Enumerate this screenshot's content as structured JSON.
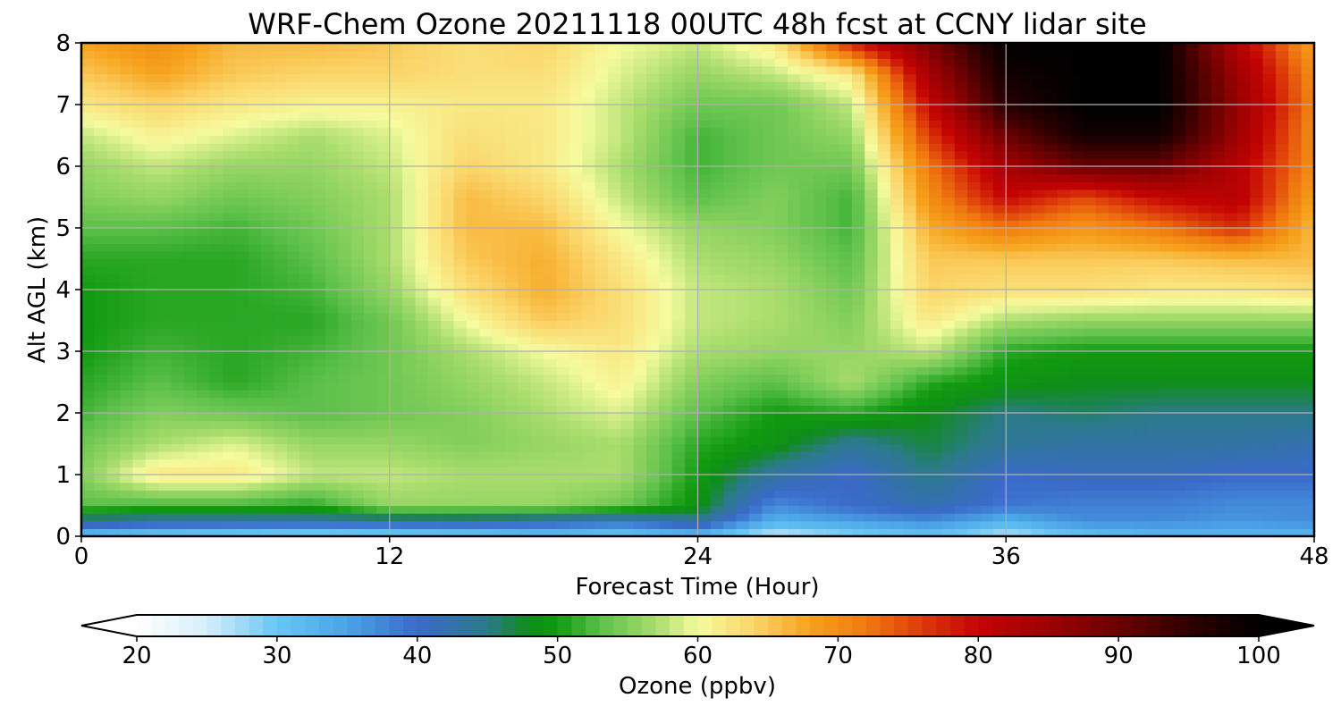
{
  "chart_data": {
    "type": "heatmap",
    "title": "WRF-Chem Ozone  20211118 00UTC 48h fcst at CCNY lidar site",
    "xlabel": "Forecast Time (Hour)",
    "ylabel": "Alt AGL (km)",
    "xlim": [
      0,
      48
    ],
    "ylim": [
      0,
      8
    ],
    "x_ticks": [
      "0",
      "12",
      "24",
      "36",
      "48"
    ],
    "y_ticks": [
      "0",
      "1",
      "2",
      "3",
      "4",
      "5",
      "6",
      "7",
      "8"
    ],
    "grid": true,
    "colorbar": {
      "label": "Ozone  (ppbv)",
      "range": [
        20,
        100
      ],
      "extend": "both",
      "ticks": [
        "20",
        "30",
        "40",
        "50",
        "60",
        "70",
        "80",
        "90",
        "100"
      ]
    },
    "x": [
      0,
      3,
      6,
      9,
      12,
      15,
      18,
      21,
      24,
      27,
      30,
      33,
      36,
      39,
      42,
      45,
      48
    ],
    "y": [
      0,
      0.25,
      0.5,
      1,
      1.5,
      2,
      2.5,
      3,
      3.5,
      4,
      4.5,
      5,
      5.5,
      6,
      6.5,
      7,
      7.5,
      8
    ],
    "z": [
      [
        30,
        28,
        27,
        26,
        27,
        28,
        30,
        29,
        31,
        25,
        28,
        30,
        26,
        30,
        32,
        32,
        32
      ],
      [
        44,
        43,
        43,
        43,
        43,
        43,
        42,
        40,
        44,
        33,
        35,
        37,
        33,
        37,
        37,
        36,
        37
      ],
      [
        53,
        52,
        52,
        51,
        56,
        56,
        56,
        54,
        49,
        37,
        40,
        42,
        39,
        38,
        38,
        37,
        37
      ],
      [
        55,
        62,
        62,
        58,
        58,
        57,
        57,
        57,
        50,
        43,
        40,
        45,
        40,
        41,
        41,
        40,
        40
      ],
      [
        54,
        57,
        59,
        56,
        56,
        55,
        56,
        57,
        51,
        49,
        44,
        47,
        44,
        43,
        43,
        43,
        42
      ],
      [
        52,
        55,
        54,
        53,
        54,
        55,
        57,
        59,
        53,
        50,
        51,
        48,
        45,
        46,
        45,
        45,
        45
      ],
      [
        51,
        53,
        51,
        53,
        54,
        56,
        58,
        61,
        55,
        53,
        57,
        51,
        49,
        48,
        48,
        48,
        48
      ],
      [
        50,
        52,
        51,
        52,
        54,
        57,
        60,
        62,
        57,
        56,
        56,
        58,
        51,
        50,
        50,
        50,
        50
      ],
      [
        50,
        51,
        51,
        51,
        54,
        60,
        65,
        63,
        58,
        57,
        55,
        62,
        57,
        56,
        56,
        56,
        56
      ],
      [
        50,
        51,
        51,
        52,
        56,
        63,
        67,
        63,
        58,
        57,
        54,
        64,
        63,
        63,
        62,
        62,
        63
      ],
      [
        51,
        51,
        51,
        53,
        57,
        65,
        67,
        62,
        57,
        56,
        53,
        65,
        65,
        65,
        65,
        66,
        66
      ],
      [
        53,
        53,
        52,
        54,
        57,
        66,
        66,
        60,
        56,
        55,
        52,
        67,
        72,
        69,
        72,
        77,
        66
      ],
      [
        55,
        56,
        54,
        55,
        57,
        66,
        64,
        58,
        53,
        55,
        52,
        70,
        80,
        75,
        80,
        82,
        68
      ],
      [
        56,
        58,
        56,
        56,
        58,
        64,
        62,
        57,
        52,
        54,
        54,
        72,
        84,
        90,
        90,
        82,
        70
      ],
      [
        58,
        61,
        59,
        57,
        59,
        63,
        62,
        58,
        52,
        54,
        56,
        76,
        90,
        98,
        98,
        85,
        70
      ],
      [
        62,
        64,
        62,
        61,
        61,
        62,
        62,
        58,
        54,
        54,
        58,
        80,
        96,
        100,
        100,
        86,
        71
      ],
      [
        65,
        68,
        65,
        64,
        64,
        63,
        63,
        59,
        56,
        58,
        62,
        84,
        98,
        100,
        100,
        85,
        70
      ],
      [
        68,
        70,
        66,
        66,
        65,
        63,
        64,
        60,
        58,
        62,
        78,
        88,
        100,
        100,
        100,
        82,
        68
      ]
    ]
  }
}
